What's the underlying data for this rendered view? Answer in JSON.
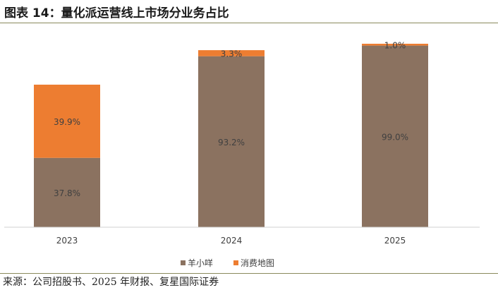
{
  "title": "图表 14：量化派运营线上市场分业务占比",
  "source": "来源：公司招股书、2025 年财报、复星国际证券",
  "colors": {
    "series_0": "#8b7260",
    "series_1": "#ed7d31",
    "axis": "#d0d0d0",
    "label": "#404040"
  },
  "chart_data": {
    "type": "bar",
    "stacked": true,
    "categories": [
      "2023",
      "2024",
      "2025"
    ],
    "series": [
      {
        "name": "羊小咩",
        "values": [
          37.8,
          93.2,
          99.0
        ],
        "labels": [
          "37.8%",
          "93.2%",
          "99.0%"
        ]
      },
      {
        "name": "消费地图",
        "values": [
          39.9,
          3.3,
          1.0
        ],
        "labels": [
          "39.9%",
          "3.3%",
          "1.0%"
        ]
      }
    ],
    "ylim": [
      0,
      100
    ],
    "grid": false,
    "legend": "bottom"
  }
}
